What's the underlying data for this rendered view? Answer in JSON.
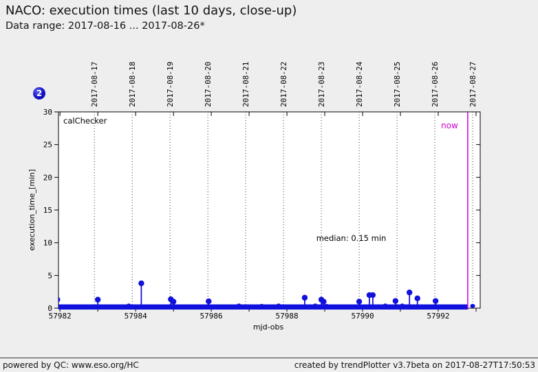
{
  "header": {
    "title": "NACO: execution times (last 10 days, close-up)",
    "subtitle": "Data range: 2017-08-16 ... 2017-08-26*"
  },
  "badge": {
    "label": "2",
    "color": "#1111c4"
  },
  "footer": {
    "left": "powered by QC: www.eso.org/HC",
    "right": "created by trendPlotter v3.7beta on 2017-08-27T17:50:53"
  },
  "chart_data": {
    "type": "scatter",
    "title": "",
    "xlabel": "mjd-obs",
    "ylabel": "execution_time_[min]",
    "xlim": [
      57981.96,
      57993.11
    ],
    "ylim": [
      0,
      30
    ],
    "grid": "vertical-dotted-per-day",
    "legend": "none",
    "x_ticks": [
      57982,
      57984,
      57986,
      57988,
      57990,
      57992
    ],
    "y_ticks": [
      0,
      5,
      10,
      15,
      20,
      25,
      30
    ],
    "top_dates": [
      {
        "label": "2017-08-17",
        "mjd": 57982.91
      },
      {
        "label": "2017-08-18",
        "mjd": 57983.91
      },
      {
        "label": "2017-08-19",
        "mjd": 57984.91
      },
      {
        "label": "2017-08-20",
        "mjd": 57985.91
      },
      {
        "label": "2017-08-21",
        "mjd": 57986.91
      },
      {
        "label": "2017-08-22",
        "mjd": 57987.91
      },
      {
        "label": "2017-08-23",
        "mjd": 57988.91
      },
      {
        "label": "2017-08-24",
        "mjd": 57989.91
      },
      {
        "label": "2017-08-25",
        "mjd": 57990.91
      },
      {
        "label": "2017-08-26",
        "mjd": 57991.91
      },
      {
        "label": "2017-08-27",
        "mjd": 57992.91
      }
    ],
    "labels": {
      "plot_label": "calChecker",
      "median_text": "median: 0.15 min",
      "now_label": "now"
    },
    "median_value_min": 0.15,
    "now_mjd": 57992.78,
    "baseline_band": {
      "from_mjd": 57981.96,
      "to_mjd": 57992.78,
      "top_min": 0.58
    },
    "median_annotation_pos": {
      "mjd": 57989.7,
      "min": 10.3
    },
    "points": [
      {
        "mjd": 57981.93,
        "min": 1.3,
        "style": "dot"
      },
      {
        "mjd": 57983.0,
        "min": 1.3,
        "style": "dot"
      },
      {
        "mjd": 57983.82,
        "min": 0.5,
        "style": "bump"
      },
      {
        "mjd": 57984.15,
        "min": 3.8,
        "style": "dot"
      },
      {
        "mjd": 57984.93,
        "min": 1.35,
        "style": "dot"
      },
      {
        "mjd": 57985.0,
        "min": 1.0,
        "style": "dot"
      },
      {
        "mjd": 57985.93,
        "min": 1.05,
        "style": "dot"
      },
      {
        "mjd": 57986.73,
        "min": 0.5,
        "style": "bump"
      },
      {
        "mjd": 57987.33,
        "min": 0.45,
        "style": "bump"
      },
      {
        "mjd": 57987.78,
        "min": 0.5,
        "style": "bump"
      },
      {
        "mjd": 57988.47,
        "min": 1.6,
        "style": "dot"
      },
      {
        "mjd": 57988.75,
        "min": 0.5,
        "style": "bump"
      },
      {
        "mjd": 57988.91,
        "min": 1.3,
        "style": "dot"
      },
      {
        "mjd": 57988.97,
        "min": 1.0,
        "style": "dot"
      },
      {
        "mjd": 57989.05,
        "min": 0.45,
        "style": "bump"
      },
      {
        "mjd": 57989.91,
        "min": 1.0,
        "style": "dot"
      },
      {
        "mjd": 57990.18,
        "min": 2.0,
        "style": "dot"
      },
      {
        "mjd": 57990.27,
        "min": 2.0,
        "style": "dot"
      },
      {
        "mjd": 57990.6,
        "min": 0.5,
        "style": "bump"
      },
      {
        "mjd": 57990.87,
        "min": 1.1,
        "style": "dot"
      },
      {
        "mjd": 57991.05,
        "min": 0.5,
        "style": "bump"
      },
      {
        "mjd": 57991.24,
        "min": 2.4,
        "style": "dot"
      },
      {
        "mjd": 57991.45,
        "min": 1.5,
        "style": "dot"
      },
      {
        "mjd": 57991.93,
        "min": 1.1,
        "style": "dot"
      },
      {
        "mjd": 57992.91,
        "min": 0.45,
        "style": "bump"
      }
    ],
    "colors": {
      "series": "#1111dd",
      "now_line": "#cc00cc",
      "grid": "#333333",
      "plot_bg": "#ffffff",
      "frame": "#000000"
    }
  }
}
